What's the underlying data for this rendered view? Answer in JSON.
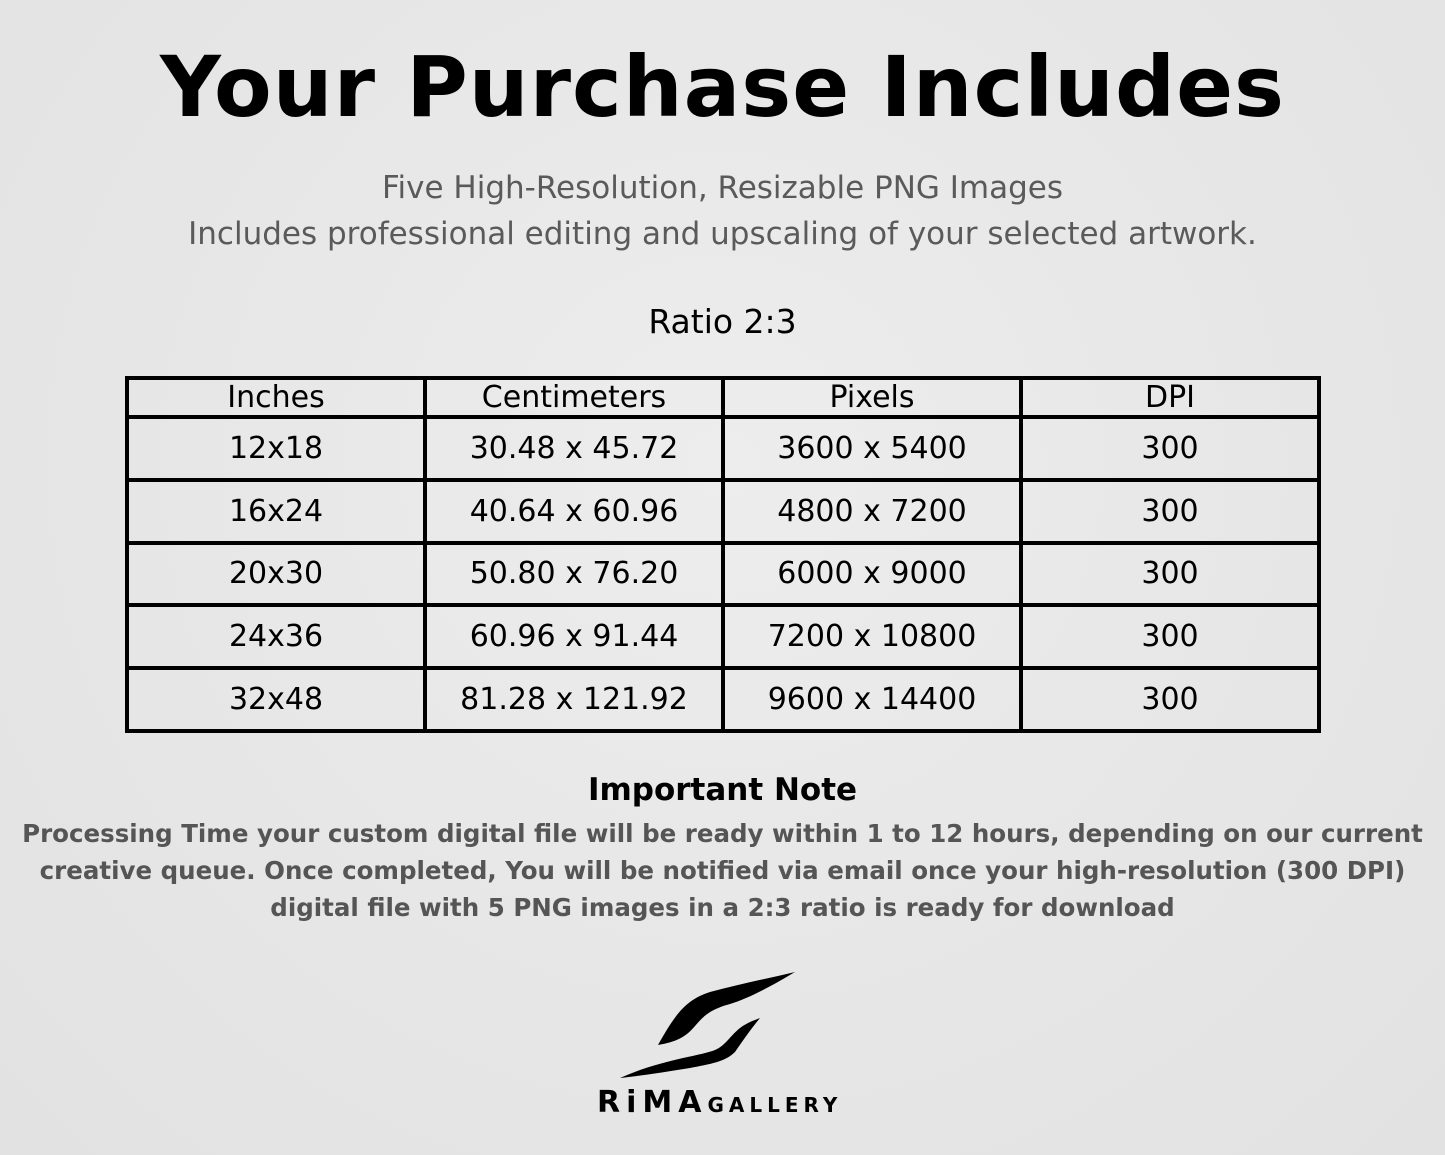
{
  "title": "Your Purchase Includes",
  "subtitle_line1": "Five High-Resolution, Resizable PNG Images",
  "subtitle_line2": "Includes professional editing and upscaling of your selected artwork.",
  "ratio_label": "Ratio 2:3",
  "table": {
    "headers": [
      "Inches",
      "Centimeters",
      "Pixels",
      "DPI"
    ],
    "rows": [
      [
        "12x18",
        "30.48 x 45.72",
        "3600 x 5400",
        "300"
      ],
      [
        "16x24",
        "40.64 x 60.96",
        "4800 x 7200",
        "300"
      ],
      [
        "20x30",
        "50.80 x 76.20",
        "6000 x 9000",
        "300"
      ],
      [
        "24x36",
        "60.96 x 91.44",
        "7200 x 10800",
        "300"
      ],
      [
        "32x48",
        "81.28 x 121.92",
        "9600 x 14400",
        "300"
      ]
    ]
  },
  "note": {
    "heading": "Important Note",
    "text": "Processing Time your custom digital file will be ready within 1 to 12 hours, depending on our current creative queue. Once completed, You will be notified via email once your high-resolution (300 DPI) digital file with 5 PNG images in a 2:3 ratio is ready for download"
  },
  "logo": {
    "name_part1": "RiMA",
    "name_part2": "GALLERY"
  }
}
